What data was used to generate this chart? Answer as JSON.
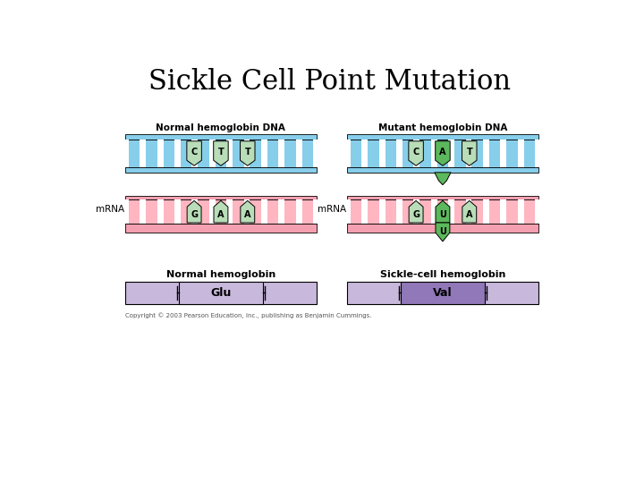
{
  "title": "Sickle Cell Point Mutation",
  "title_fontsize": 22,
  "colors": {
    "blue_top_bar": "#87CEEB",
    "blue_body": "#87CEEB",
    "blue_dark": "#4A9CC4",
    "pink_body": "#FFB6C1",
    "pink_bar": "#F4A0B0",
    "green_light": "#B8DDB8",
    "green_dark": "#5CB85C",
    "purple_light": "#C8B8DC",
    "purple_dark": "#9178B8",
    "white": "#FFFFFF",
    "black": "#000000"
  },
  "normal_dna_label": "Normal hemoglobin DNA",
  "mutant_dna_label": "Mutant hemoglobin DNA",
  "normal_hemo_label": "Normal hemoglobin",
  "sickle_label": "Sickle-cell hemoglobin",
  "normal_bases": [
    "C",
    "T",
    "T"
  ],
  "mutant_bases": [
    "C",
    "A",
    "T"
  ],
  "normal_mrna": [
    "G",
    "A",
    "A"
  ],
  "mutant_mrna": [
    "G",
    "U",
    "A"
  ],
  "normal_aa": "Glu",
  "mutant_aa": "Val",
  "copyright": "Copyright © 2003 Pearson Education, Inc., publishing as Benjamin Cummings."
}
